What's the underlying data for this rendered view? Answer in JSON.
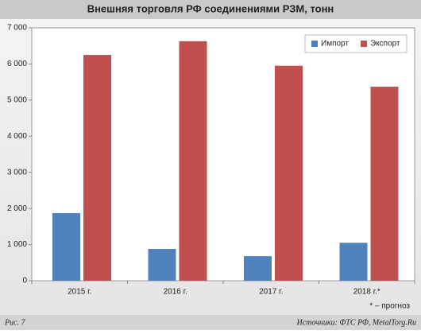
{
  "chart_data": {
    "type": "bar",
    "title": "Внешняя торговля РФ соединениями РЗМ, тонн",
    "categories": [
      "2015 г.",
      "2016 г.",
      "2017 г.",
      "2018 г.*"
    ],
    "series": [
      {
        "name": "Импорт",
        "color": "#4f81bd",
        "values": [
          1870,
          880,
          680,
          1050
        ]
      },
      {
        "name": "Экспорт",
        "color": "#c0504d",
        "values": [
          6250,
          6630,
          5950,
          5370
        ]
      }
    ],
    "ylim": [
      0,
      7000
    ],
    "yticks": [
      0,
      {
        "value": 1000,
        "label": "1 000"
      },
      {
        "value": 2000,
        "label": "2 000"
      },
      {
        "value": 3000,
        "label": "3 000"
      },
      {
        "value": 4000,
        "label": "4 000"
      },
      {
        "value": 5000,
        "label": "5 000"
      },
      {
        "value": 6000,
        "label": "6 000"
      },
      {
        "value": 7000,
        "label": "7 000"
      }
    ],
    "legend": "upper right",
    "footnote": "* – прогноз",
    "figure_label": "Рис. 7",
    "source": "Источники: ФТС РФ, MetalTorg.Ru"
  }
}
